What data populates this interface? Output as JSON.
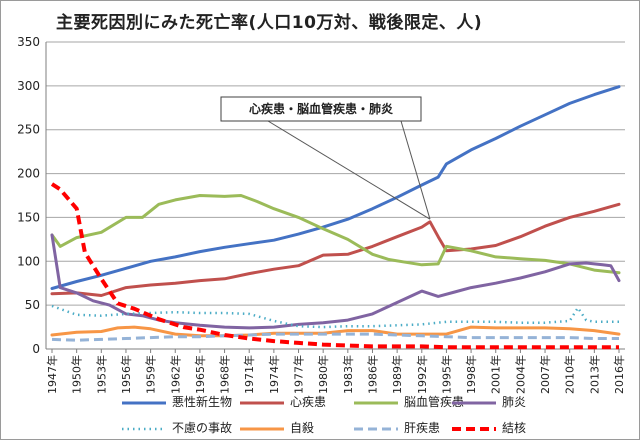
{
  "title": "主要死因別にみた死亡率(人口10万対、戦後限定、人)",
  "annotation": "心疾患・脳血管疾患・肺炎",
  "chart_data": {
    "type": "line",
    "ylim": [
      0,
      350
    ],
    "yticks": [
      0,
      50,
      100,
      150,
      200,
      250,
      300,
      350
    ],
    "xlim": [
      1947,
      2016
    ],
    "xtick_years": [
      1947,
      1950,
      1953,
      1956,
      1959,
      1962,
      1965,
      1968,
      1971,
      1974,
      1977,
      1980,
      1983,
      1986,
      1989,
      1992,
      1995,
      1998,
      2001,
      2004,
      2007,
      2010,
      2013,
      2016
    ],
    "xtick_suffix": "年",
    "grid": "horizontal",
    "legend_position": "bottom",
    "series": [
      {
        "name": "悪性新生物",
        "color": "#4472c4",
        "style": "solid",
        "width": 3,
        "x": [
          1947,
          1950,
          1953,
          1956,
          1959,
          1962,
          1965,
          1968,
          1971,
          1974,
          1977,
          1980,
          1983,
          1986,
          1989,
          1992,
          1994,
          1995,
          1998,
          2001,
          2004,
          2007,
          2010,
          2013,
          2016
        ],
        "y": [
          69,
          77,
          84,
          92,
          100,
          105,
          111,
          116,
          120,
          124,
          131,
          139,
          148,
          160,
          173,
          187,
          196,
          211,
          227,
          240,
          254,
          267,
          280,
          290,
          299
        ]
      },
      {
        "name": "心疾患",
        "color": "#c0504d",
        "style": "solid",
        "width": 3,
        "x": [
          1947,
          1950,
          1953,
          1956,
          1959,
          1962,
          1965,
          1968,
          1971,
          1974,
          1977,
          1980,
          1983,
          1986,
          1989,
          1992,
          1993,
          1994,
          1995,
          1998,
          2001,
          2004,
          2007,
          2010,
          2013,
          2016
        ],
        "y": [
          63,
          64,
          61,
          70,
          73,
          75,
          78,
          80,
          86,
          91,
          95,
          107,
          108,
          117,
          128,
          139,
          145,
          128,
          112,
          114,
          118,
          128,
          140,
          150,
          157,
          165
        ]
      },
      {
        "name": "脳血管疾患",
        "color": "#9bbb59",
        "style": "solid",
        "width": 3,
        "x": [
          1947,
          1948,
          1950,
          1953,
          1956,
          1958,
          1960,
          1962,
          1965,
          1968,
          1970,
          1972,
          1974,
          1977,
          1980,
          1983,
          1986,
          1988,
          1990,
          1992,
          1994,
          1995,
          1998,
          2001,
          2004,
          2007,
          2010,
          2013,
          2016
        ],
        "y": [
          130,
          117,
          127,
          133,
          150,
          150,
          165,
          170,
          175,
          174,
          175,
          168,
          160,
          150,
          137,
          125,
          108,
          102,
          99,
          96,
          97,
          117,
          112,
          105,
          103,
          101,
          97,
          90,
          87
        ]
      },
      {
        "name": "肺炎",
        "color": "#8064a2",
        "style": "solid",
        "width": 3,
        "x": [
          1947,
          1948,
          1950,
          1952,
          1954,
          1956,
          1958,
          1960,
          1962,
          1965,
          1968,
          1971,
          1974,
          1977,
          1980,
          1983,
          1986,
          1989,
          1992,
          1994,
          1996,
          1998,
          2001,
          2004,
          2007,
          2010,
          2012,
          2014,
          2015,
          2016
        ],
        "y": [
          130,
          70,
          64,
          55,
          50,
          40,
          38,
          33,
          30,
          27,
          25,
          24,
          25,
          28,
          30,
          33,
          40,
          53,
          66,
          60,
          65,
          70,
          75,
          81,
          88,
          97,
          98,
          96,
          95,
          78
        ]
      },
      {
        "name": "不慮の事故",
        "color": "#4bacc6",
        "style": "dotted",
        "width": 2.5,
        "x": [
          1947,
          1950,
          1953,
          1956,
          1959,
          1962,
          1965,
          1968,
          1971,
          1974,
          1977,
          1980,
          1983,
          1986,
          1989,
          1992,
          1995,
          1998,
          2001,
          2004,
          2007,
          2010,
          2011,
          2012,
          2013,
          2016
        ],
        "y": [
          49,
          39,
          38,
          40,
          41,
          42,
          41,
          41,
          40,
          32,
          26,
          25,
          26,
          26,
          27,
          28,
          31,
          31,
          31,
          30,
          30,
          32,
          47,
          33,
          31,
          31
        ]
      },
      {
        "name": "自殺",
        "color": "#f79646",
        "style": "solid",
        "width": 3,
        "x": [
          1947,
          1950,
          1953,
          1955,
          1957,
          1959,
          1962,
          1965,
          1968,
          1971,
          1974,
          1977,
          1980,
          1983,
          1986,
          1989,
          1992,
          1995,
          1998,
          2001,
          2004,
          2007,
          2010,
          2013,
          2016
        ],
        "y": [
          16,
          19,
          20,
          24,
          25,
          23,
          17,
          15,
          15,
          16,
          18,
          18,
          18,
          21,
          21,
          17,
          17,
          17,
          25,
          24,
          24,
          24,
          23,
          21,
          17
        ]
      },
      {
        "name": "肝疾患",
        "color": "#95b3d7",
        "style": "dashed",
        "width": 3,
        "x": [
          1947,
          1950,
          1953,
          1956,
          1959,
          1962,
          1965,
          1968,
          1971,
          1974,
          1977,
          1980,
          1983,
          1986,
          1989,
          1992,
          1995,
          1998,
          2001,
          2004,
          2007,
          2010,
          2013,
          2016
        ],
        "y": [
          11,
          10,
          11,
          12,
          13,
          14,
          14,
          15,
          16,
          17,
          17,
          17,
          17,
          17,
          16,
          15,
          14,
          13,
          13,
          13,
          13,
          13,
          12,
          12
        ]
      },
      {
        "name": "結核",
        "color": "#ff0000",
        "style": "dashed",
        "width": 4,
        "x": [
          1947,
          1948,
          1950,
          1951,
          1953,
          1955,
          1957,
          1960,
          1963,
          1965,
          1968,
          1971,
          1974,
          1977,
          1980,
          1983,
          1986,
          1989,
          1992,
          1995,
          1998,
          2001,
          2004,
          2007,
          2010,
          2013,
          2016
        ],
        "y": [
          188,
          182,
          160,
          110,
          80,
          52,
          46,
          34,
          25,
          22,
          16,
          12,
          9,
          7,
          5,
          4,
          3,
          3,
          3,
          2,
          2,
          2,
          2,
          2,
          2,
          2,
          2
        ]
      }
    ]
  }
}
